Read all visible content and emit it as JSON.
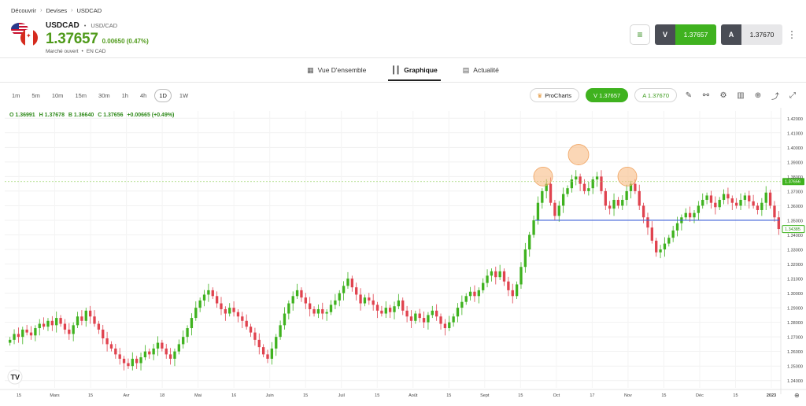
{
  "breadcrumb": [
    "Découvrir",
    "Devises",
    "USDCAD"
  ],
  "instrument": {
    "symbol": "USDCAD",
    "pair": "USD/CAD",
    "price": "1.37657",
    "change": "0.00650 (0.47%)",
    "status": "Marché ouvert",
    "currency": "EN CAD"
  },
  "actions": {
    "sell_label": "V",
    "sell_price": "1.37657",
    "buy_label": "A",
    "buy_price": "1.37670"
  },
  "tabs": [
    {
      "label": "Vue D'ensemble",
      "icon": "grid-icon"
    },
    {
      "label": "Graphique",
      "icon": "candles-icon"
    },
    {
      "label": "Actualité",
      "icon": "news-icon"
    }
  ],
  "timeframes": [
    "1m",
    "5m",
    "10m",
    "15m",
    "30m",
    "1h",
    "4h",
    "1D",
    "1W"
  ],
  "active_timeframe": "1D",
  "toolbar": {
    "procharts": "ProCharts",
    "sell_pill": "V 1.37657",
    "buy_pill": "A 1.37670"
  },
  "ohlc": {
    "o": "O 1.36991",
    "h": "H 1.37678",
    "b": "B 1.36640",
    "c": "C 1.37656",
    "chg": "+0.00665 (+0.49%)"
  },
  "colors": {
    "up": "#3fb21f",
    "down": "#e0434f",
    "hline": "#3a5ed8",
    "ask_line": "#9fd86f",
    "circle": "#f7b67a"
  },
  "chart_data": {
    "type": "candlestick",
    "x_ticks": [
      "15",
      "Mars",
      "15",
      "Avr",
      "18",
      "Mai",
      "16",
      "Juin",
      "15",
      "Juil",
      "15",
      "Août",
      "15",
      "Sept",
      "15",
      "Oct",
      "17",
      "Nov",
      "15",
      "Déc",
      "15",
      "2023"
    ],
    "y_ticks": [
      "1.42000",
      "1.41000",
      "1.40000",
      "1.39000",
      "1.38000",
      "1.37000",
      "1.36000",
      "1.35000",
      "1.34000",
      "1.33000",
      "1.32000",
      "1.31000",
      "1.30000",
      "1.29000",
      "1.28000",
      "1.27000",
      "1.26000",
      "1.25000",
      "1.24000"
    ],
    "ylim": [
      1.235,
      1.425
    ],
    "last_price_label": "1.37656",
    "current_label": "1.34385",
    "support_level": 1.35,
    "ask_level": 1.37656,
    "highlighted_peaks": [
      {
        "x": "end Sept",
        "y": 1.38
      },
      {
        "x": "mid Oct",
        "y": 1.395
      },
      {
        "x": "end Oct",
        "y": 1.38
      }
    ],
    "closes": [
      1.268,
      1.272,
      1.27,
      1.275,
      1.273,
      1.271,
      1.276,
      1.279,
      1.277,
      1.281,
      1.278,
      1.283,
      1.279,
      1.275,
      1.272,
      1.278,
      1.284,
      1.281,
      1.288,
      1.284,
      1.279,
      1.275,
      1.269,
      1.265,
      1.262,
      1.258,
      1.255,
      1.252,
      1.25,
      1.255,
      1.252,
      1.256,
      1.26,
      1.258,
      1.262,
      1.266,
      1.262,
      1.258,
      1.255,
      1.26,
      1.265,
      1.27,
      1.276,
      1.283,
      1.29,
      1.295,
      1.299,
      1.302,
      1.298,
      1.293,
      1.289,
      1.286,
      1.29,
      1.287,
      1.284,
      1.281,
      1.277,
      1.273,
      1.268,
      1.263,
      1.258,
      1.255,
      1.262,
      1.27,
      1.278,
      1.286,
      1.293,
      1.298,
      1.302,
      1.297,
      1.293,
      1.289,
      1.286,
      1.289,
      1.286,
      1.287,
      1.292,
      1.295,
      1.3,
      1.305,
      1.31,
      1.304,
      1.299,
      1.293,
      1.297,
      1.295,
      1.292,
      1.288,
      1.286,
      1.29,
      1.287,
      1.291,
      1.295,
      1.288,
      1.284,
      1.281,
      1.286,
      1.283,
      1.28,
      1.285,
      1.288,
      1.284,
      1.279,
      1.276,
      1.28,
      1.284,
      1.29,
      1.294,
      1.298,
      1.301,
      1.298,
      1.302,
      1.307,
      1.312,
      1.315,
      1.311,
      1.315,
      1.308,
      1.302,
      1.298,
      1.306,
      1.318,
      1.33,
      1.34,
      1.35,
      1.362,
      1.37,
      1.375,
      1.362,
      1.353,
      1.36,
      1.368,
      1.372,
      1.378,
      1.38,
      1.375,
      1.37,
      1.372,
      1.378,
      1.38,
      1.37,
      1.36,
      1.358,
      1.364,
      1.36,
      1.364,
      1.37,
      1.375,
      1.37,
      1.36,
      1.352,
      1.345,
      1.336,
      1.328,
      1.33,
      1.334,
      1.338,
      1.343,
      1.348,
      1.352,
      1.355,
      1.352,
      1.355,
      1.36,
      1.364,
      1.367,
      1.362,
      1.359,
      1.364,
      1.368,
      1.365,
      1.362,
      1.36,
      1.364,
      1.367,
      1.363,
      1.36,
      1.357,
      1.362,
      1.369,
      1.36,
      1.352,
      1.344
    ]
  }
}
